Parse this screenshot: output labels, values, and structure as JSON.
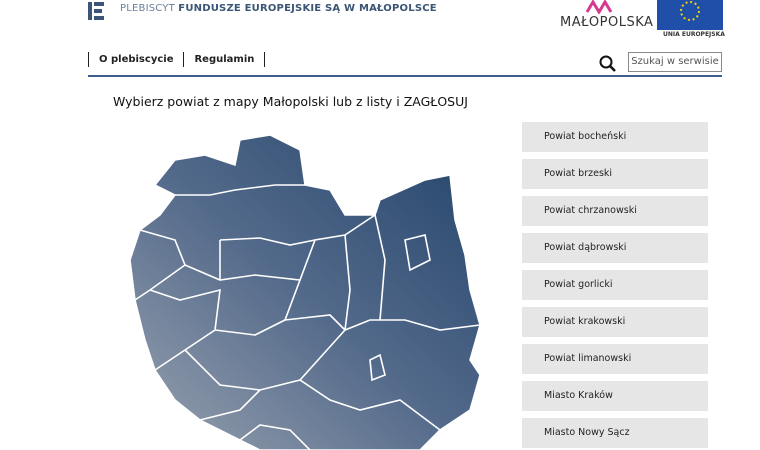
{
  "header": {
    "title_prefix": "PLEBISCYT",
    "title_main": "FUNDUSZE EUROPEJSKIE SĄ W MAŁOPOLSCE",
    "region_logo": "MAŁOPOLSKA",
    "eu_logo": "UNIA EUROPEJSKA"
  },
  "nav": {
    "items": [
      "O plebiscycie",
      "Regulamin"
    ],
    "search": "Szukaj w serwisie"
  },
  "main": {
    "heading": "Wybierz powiat z mapy Małopolski lub z listy i ZAGŁOSUJ",
    "list": [
      "Powiat bocheński",
      "Powiat brzeski",
      "Powiat chrzanowski",
      "Powiat dąbrowski",
      "Powiat gorlicki",
      "Powiat krakowski",
      "Powiat limanowski",
      "Miasto Kraków",
      "Miasto Nowy Sącz"
    ]
  }
}
